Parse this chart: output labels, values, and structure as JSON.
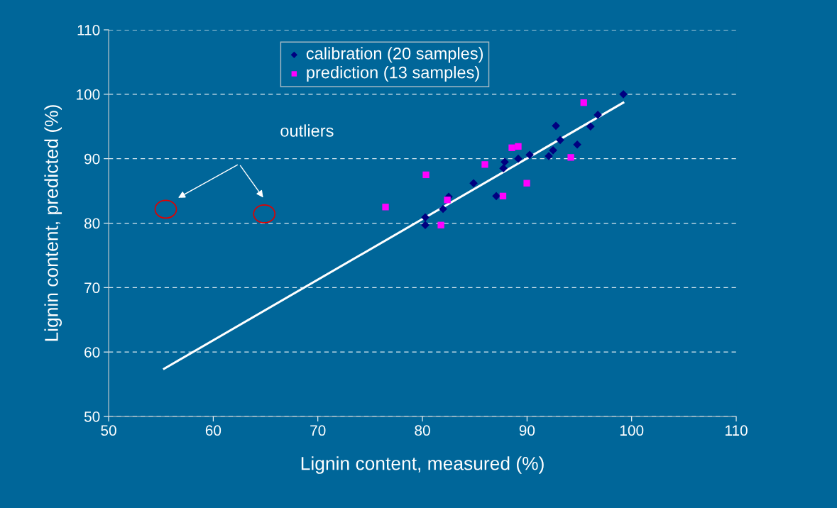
{
  "chart_data": {
    "type": "scatter",
    "xlabel": "Lignin content, measured (%)",
    "ylabel": "Lignin content, predicted (%)",
    "xlim": [
      50,
      110
    ],
    "xticks": [
      50,
      60,
      70,
      80,
      90,
      100,
      110
    ],
    "ylim": [
      50,
      110
    ],
    "yticks": [
      50,
      60,
      70,
      80,
      90,
      100,
      110
    ],
    "grid": "y",
    "legend": "top",
    "annotations": [
      "outliers"
    ],
    "series": [
      {
        "name": "calibration (20 samples)",
        "color": "#000080",
        "marker": "diamond",
        "x": [
          87.87,
          87.74,
          84.89,
          87.06,
          82.51,
          81.97,
          80.27,
          80.27,
          99.21,
          96.77,
          96.07,
          92.76,
          93.17,
          94.8,
          92.49,
          92.08,
          90.25,
          89.16
        ],
        "values": [
          89.5,
          88.5,
          86.2,
          84.2,
          84.1,
          82.2,
          80.9,
          79.7,
          100.0,
          96.8,
          95.0,
          95.1,
          92.9,
          92.2,
          91.3,
          90.4,
          90.6,
          90.0
        ]
      },
      {
        "name": "prediction (13 samples)",
        "color": "#ff00ff",
        "marker": "square",
        "x": [
          76.47,
          80.34,
          85.97,
          82.38,
          81.77,
          87.7,
          88.55,
          89.16,
          95.42,
          94.19,
          89.98
        ],
        "values": [
          82.5,
          87.5,
          89.1,
          83.6,
          79.7,
          84.2,
          91.7,
          91.9,
          98.7,
          90.2,
          86.2
        ]
      },
      {
        "type": "line",
        "color": "#ffffff",
        "marker": "none",
        "line_style": "solid",
        "x": [
          55.3,
          99.2
        ],
        "values": [
          57.4,
          98.7
        ]
      }
    ]
  }
}
